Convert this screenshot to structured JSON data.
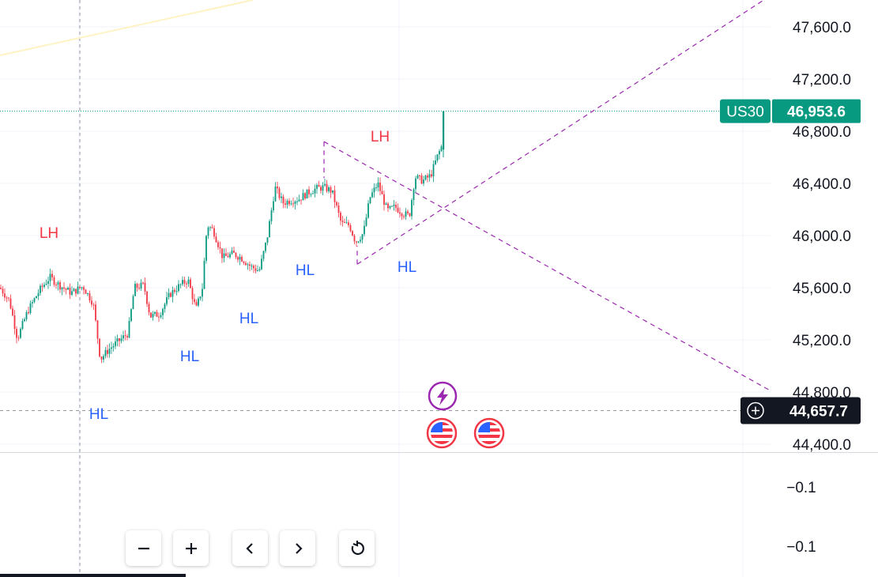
{
  "chart_data": {
    "type": "candlestick",
    "symbol": "US30",
    "price_axis": {
      "ticks": [
        47600,
        47200,
        46800,
        46400,
        46000,
        45600,
        45200,
        44800,
        44400
      ],
      "tick_labels": [
        "47,600.0",
        "47,200.0",
        "46,800.0",
        "46,400.0",
        "46,000.0",
        "45,600.0",
        "45,200.0",
        "44,800.0",
        "44,400.0"
      ]
    },
    "indicator_axis": {
      "tick_labels": [
        "−0.1",
        "−0.1"
      ]
    },
    "last_price": {
      "symbol_label": "US30",
      "value": 46953.6,
      "label": "46,953.6",
      "color": "#089981"
    },
    "crosshair_price": {
      "value": 44657.7,
      "label": "44,657.7"
    },
    "annotations": [
      {
        "text": "LH",
        "kind": "lower-high",
        "color": "#f23645"
      },
      {
        "text": "LH",
        "kind": "lower-high",
        "color": "#f23645"
      },
      {
        "text": "HL",
        "kind": "higher-low",
        "color": "#2962ff"
      },
      {
        "text": "HL",
        "kind": "higher-low",
        "color": "#2962ff"
      },
      {
        "text": "HL",
        "kind": "higher-low",
        "color": "#2962ff"
      },
      {
        "text": "HL",
        "kind": "higher-low",
        "color": "#2962ff"
      },
      {
        "text": "HL",
        "kind": "higher-low",
        "color": "#2962ff"
      }
    ],
    "trendlines": [
      {
        "name": "upper-falling-line",
        "style": "dashed",
        "color": "#9c27b0",
        "from_price": 46720,
        "to_price": 44810
      },
      {
        "name": "lower-rising-line",
        "style": "dashed",
        "color": "#9c27b0",
        "from_price": 45780,
        "to_price": 47800
      }
    ],
    "events": [
      {
        "type": "lightning",
        "icon": "lightning-icon",
        "color": "#9c27b0"
      },
      {
        "type": "us-economic-event",
        "icon": "us-flag-icon",
        "color": "#f23645"
      },
      {
        "type": "us-economic-event",
        "icon": "us-flag-icon",
        "color": "#f23645"
      }
    ],
    "candle_colors": {
      "up": "#089981",
      "down": "#f23645"
    }
  },
  "toolbar": {
    "zoom_out_icon": "minus-icon",
    "zoom_in_icon": "plus-icon",
    "scroll_left_icon": "chevron-left-icon",
    "scroll_right_icon": "chevron-right-icon",
    "reset_icon": "reset-icon"
  }
}
